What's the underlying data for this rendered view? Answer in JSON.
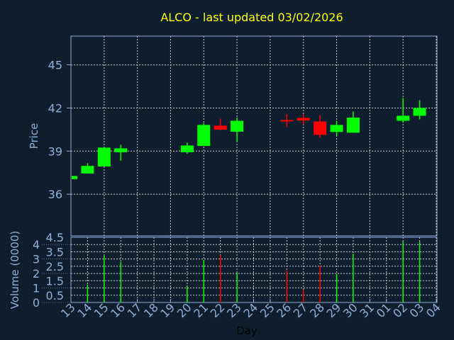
{
  "chart_data": [
    {
      "type": "candlestick",
      "title": "ALCO - last updated 03/02/2026",
      "xlabel": "",
      "ylabel": "Price",
      "ylim": [
        33.1,
        47
      ],
      "yticks": [
        36,
        39,
        42,
        45
      ],
      "grid": true,
      "colors": {
        "up": "#00ff00",
        "down": "#ff0000",
        "title": "#ffff00",
        "axis": "#8fb0d8",
        "background": "#0f1e2f"
      },
      "categories": [
        "13",
        "14",
        "15",
        "16",
        "17",
        "18",
        "19",
        "20",
        "21",
        "22",
        "23",
        "24",
        "25",
        "26",
        "27",
        "28",
        "29",
        "30",
        "31",
        "01",
        "02",
        "03",
        "04"
      ],
      "candles": [
        {
          "day": "13",
          "open": 37.05,
          "high": 37.27,
          "low": 37.05,
          "close": 37.27
        },
        {
          "day": "14",
          "open": 37.44,
          "high": 38.16,
          "low": 37.44,
          "close": 37.97
        },
        {
          "day": "15",
          "open": 37.93,
          "high": 39.24,
          "low": 37.93,
          "close": 39.24
        },
        {
          "day": "16",
          "open": 38.92,
          "high": 39.44,
          "low": 38.33,
          "close": 39.19
        },
        {
          "day": "20",
          "open": 38.92,
          "high": 39.59,
          "low": 38.82,
          "close": 39.39
        },
        {
          "day": "21",
          "open": 39.36,
          "high": 40.95,
          "low": 39.36,
          "close": 40.82
        },
        {
          "day": "22",
          "open": 40.77,
          "high": 41.26,
          "low": 40.44,
          "close": 40.49
        },
        {
          "day": "23",
          "open": 40.35,
          "high": 41.34,
          "low": 39.64,
          "close": 41.11
        },
        {
          "day": "26",
          "open": 41.16,
          "high": 41.56,
          "low": 40.67,
          "close": 41.08
        },
        {
          "day": "27",
          "open": 41.31,
          "high": 41.56,
          "low": 40.85,
          "close": 41.13
        },
        {
          "day": "28",
          "open": 41.06,
          "high": 41.51,
          "low": 39.93,
          "close": 40.13
        },
        {
          "day": "29",
          "open": 40.33,
          "high": 41.11,
          "low": 40.07,
          "close": 40.82
        },
        {
          "day": "30",
          "open": 40.28,
          "high": 41.75,
          "low": 40.28,
          "close": 41.33
        },
        {
          "day": "02",
          "open": 41.11,
          "high": 42.69,
          "low": 40.97,
          "close": 41.46
        },
        {
          "day": "03",
          "open": 41.46,
          "high": 42.54,
          "low": 41.21,
          "close": 42.0
        }
      ]
    },
    {
      "type": "bar",
      "xlabel": "Day",
      "ylabel": "Volume (0000)",
      "ylim": [
        0,
        4.5
      ],
      "yticks": [
        "0",
        "0.5",
        "1",
        "1.5",
        "2",
        "2.5",
        "3",
        "3.5",
        "4",
        "4.5"
      ],
      "grid": true,
      "categories": [
        "13",
        "14",
        "15",
        "16",
        "17",
        "18",
        "19",
        "20",
        "21",
        "22",
        "23",
        "24",
        "25",
        "26",
        "27",
        "28",
        "29",
        "30",
        "31",
        "01",
        "02",
        "03",
        "04"
      ],
      "bars": [
        {
          "day": "14",
          "value": 1.22,
          "direction": "up"
        },
        {
          "day": "15",
          "value": 3.23,
          "direction": "up"
        },
        {
          "day": "16",
          "value": 2.8,
          "direction": "up"
        },
        {
          "day": "20",
          "value": 1.09,
          "direction": "up"
        },
        {
          "day": "21",
          "value": 2.93,
          "direction": "up"
        },
        {
          "day": "22",
          "value": 3.25,
          "direction": "down"
        },
        {
          "day": "23",
          "value": 2.06,
          "direction": "up"
        },
        {
          "day": "26",
          "value": 2.2,
          "direction": "down"
        },
        {
          "day": "27",
          "value": 0.89,
          "direction": "down"
        },
        {
          "day": "28",
          "value": 2.55,
          "direction": "down"
        },
        {
          "day": "29",
          "value": 1.98,
          "direction": "up"
        },
        {
          "day": "30",
          "value": 3.37,
          "direction": "up"
        },
        {
          "day": "02",
          "value": 4.2,
          "direction": "up"
        },
        {
          "day": "03",
          "value": 4.2,
          "direction": "up"
        }
      ]
    }
  ]
}
